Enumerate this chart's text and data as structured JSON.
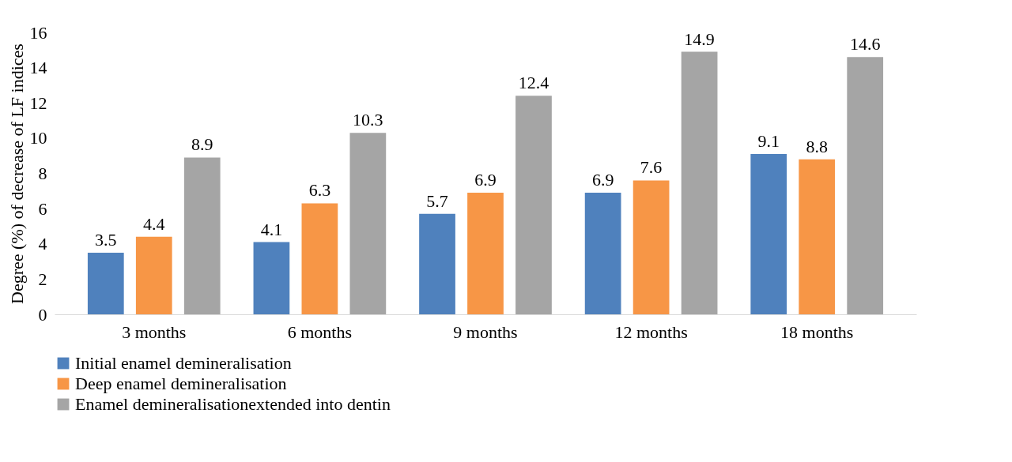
{
  "chart_data": {
    "type": "bar",
    "ylabel": "Degree (%) of decrease of LF indices",
    "categories": [
      "3 months",
      "6 months",
      "9 months",
      "12 months",
      "18 months"
    ],
    "series": [
      {
        "name": "Initial enamel demineralisation",
        "color": "#4f81bd",
        "values": [
          3.5,
          4.1,
          5.7,
          6.9,
          9.1
        ]
      },
      {
        "name": "Deep enamel demineralisation",
        "color": "#f79646",
        "values": [
          4.4,
          6.3,
          6.9,
          7.6,
          8.8
        ]
      },
      {
        "name": "Enamel demineralisationextended into dentin",
        "color": "#a5a5a5",
        "values": [
          8.9,
          10.3,
          12.4,
          14.9,
          14.6
        ]
      }
    ],
    "ylim": [
      0,
      16
    ],
    "yticks": [
      0,
      2,
      4,
      6,
      8,
      10,
      12,
      14,
      16
    ],
    "data_labels": true,
    "grid": false,
    "legend": "bottom"
  }
}
